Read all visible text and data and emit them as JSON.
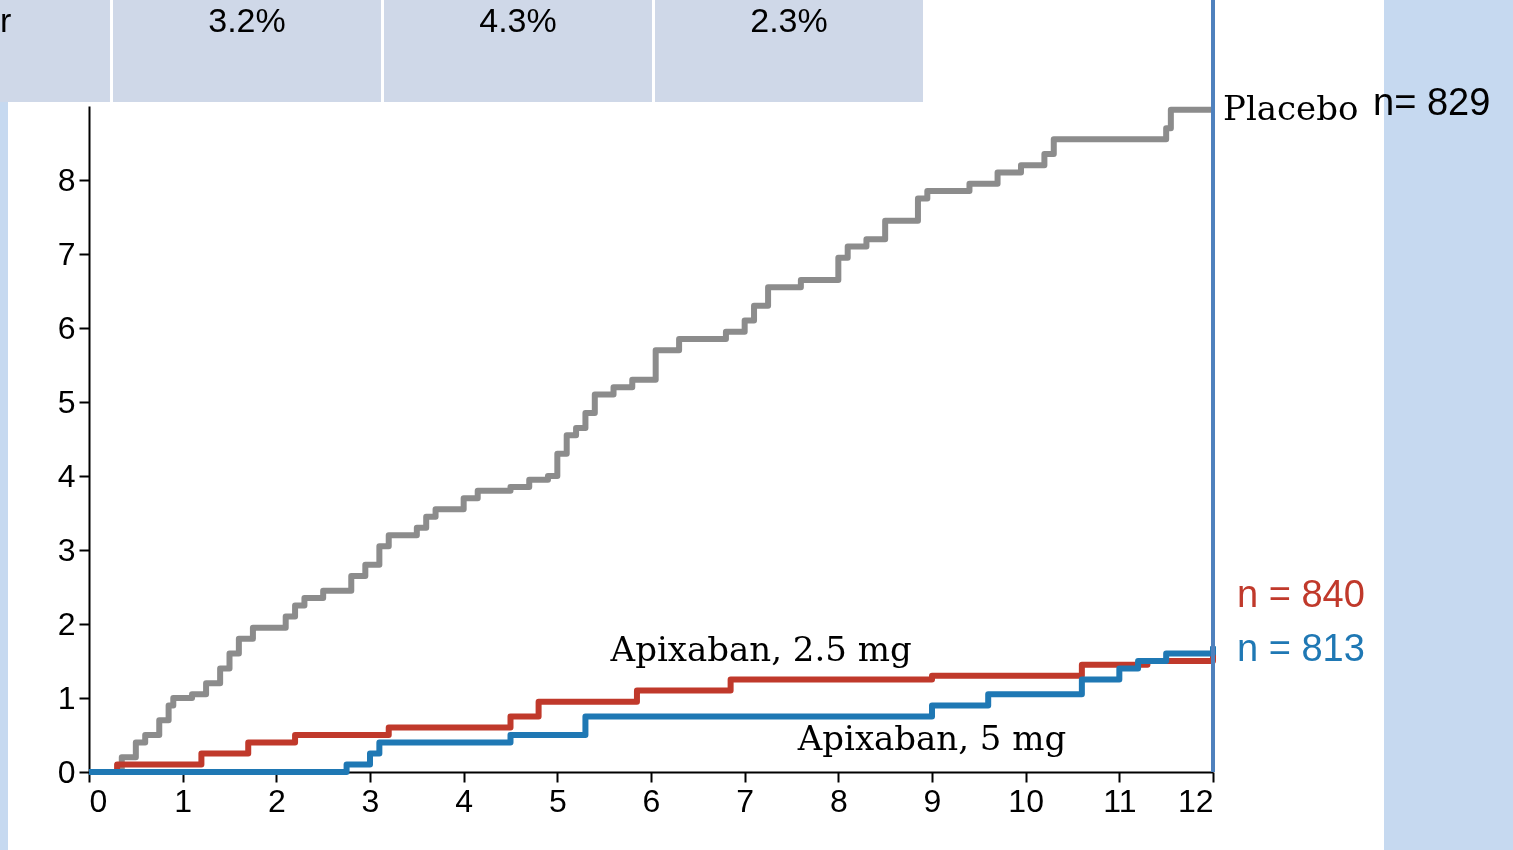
{
  "chart_data": {
    "type": "step",
    "xlim": [
      0,
      12
    ],
    "xticks": [
      0,
      1,
      2,
      3,
      4,
      5,
      6,
      7,
      8,
      9,
      10,
      11,
      12
    ],
    "ylim": [
      0,
      9
    ],
    "yticks": [
      0,
      1,
      2,
      3,
      4,
      5,
      6,
      7,
      8
    ],
    "grid": false,
    "line_style": "solid",
    "marker": "none",
    "series": [
      {
        "name": "Placebo",
        "color": "#8c8c8c",
        "x": [
          0,
          0.3,
          0.35,
          0.5,
          0.6,
          0.75,
          0.85,
          0.9,
          1.1,
          1.25,
          1.4,
          1.5,
          1.6,
          1.75,
          2.1,
          2.2,
          2.3,
          2.5,
          2.8,
          2.95,
          3.1,
          3.2,
          3.5,
          3.6,
          3.7,
          4.0,
          4.15,
          4.5,
          4.7,
          4.9,
          5.0,
          5.1,
          5.2,
          5.3,
          5.4,
          5.6,
          5.8,
          6.05,
          6.3,
          6.8,
          7.0,
          7.1,
          7.25,
          7.6,
          8.0,
          8.1,
          8.3,
          8.5,
          8.85,
          8.95,
          9.4,
          9.7,
          9.95,
          10.2,
          10.3,
          11.5,
          11.55,
          12
        ],
        "values": [
          0,
          0,
          0.2,
          0.4,
          0.5,
          0.7,
          0.9,
          1.0,
          1.05,
          1.2,
          1.4,
          1.6,
          1.8,
          1.95,
          2.1,
          2.25,
          2.35,
          2.45,
          2.65,
          2.8,
          3.05,
          3.2,
          3.3,
          3.45,
          3.55,
          3.7,
          3.8,
          3.85,
          3.95,
          4.0,
          4.3,
          4.55,
          4.65,
          4.85,
          5.1,
          5.2,
          5.3,
          5.7,
          5.85,
          5.95,
          6.1,
          6.3,
          6.55,
          6.65,
          6.95,
          7.1,
          7.2,
          7.45,
          7.75,
          7.85,
          7.95,
          8.1,
          8.2,
          8.35,
          8.55,
          8.7,
          8.95,
          8.95
        ]
      },
      {
        "name": "Apixaban, 2.5 mg",
        "color": "#c0392b",
        "x": [
          0,
          0.3,
          1.2,
          1.7,
          2.2,
          3.2,
          4.5,
          4.8,
          5.85,
          6.85,
          9.0,
          10.6,
          11.3,
          12
        ],
        "values": [
          0,
          0.1,
          0.25,
          0.4,
          0.5,
          0.6,
          0.75,
          0.95,
          1.1,
          1.25,
          1.3,
          1.45,
          1.5,
          1.6
        ]
      },
      {
        "name": "Apixaban, 5 mg",
        "color": "#1f78b4",
        "x": [
          0,
          2.75,
          3.0,
          3.1,
          4.5,
          5.3,
          9.0,
          9.6,
          10.6,
          11.0,
          11.2,
          11.5,
          12
        ],
        "values": [
          0,
          0.1,
          0.25,
          0.4,
          0.5,
          0.75,
          0.9,
          1.05,
          1.25,
          1.4,
          1.5,
          1.6,
          1.7
        ]
      }
    ],
    "ref_lines": [
      {
        "axis": "x",
        "value": 12,
        "color": "#4f81bd"
      }
    ],
    "annotations": [
      "r",
      "3.2%",
      "4.3%",
      "2.3%",
      "n= 829",
      "n = 840",
      "n = 813"
    ]
  }
}
